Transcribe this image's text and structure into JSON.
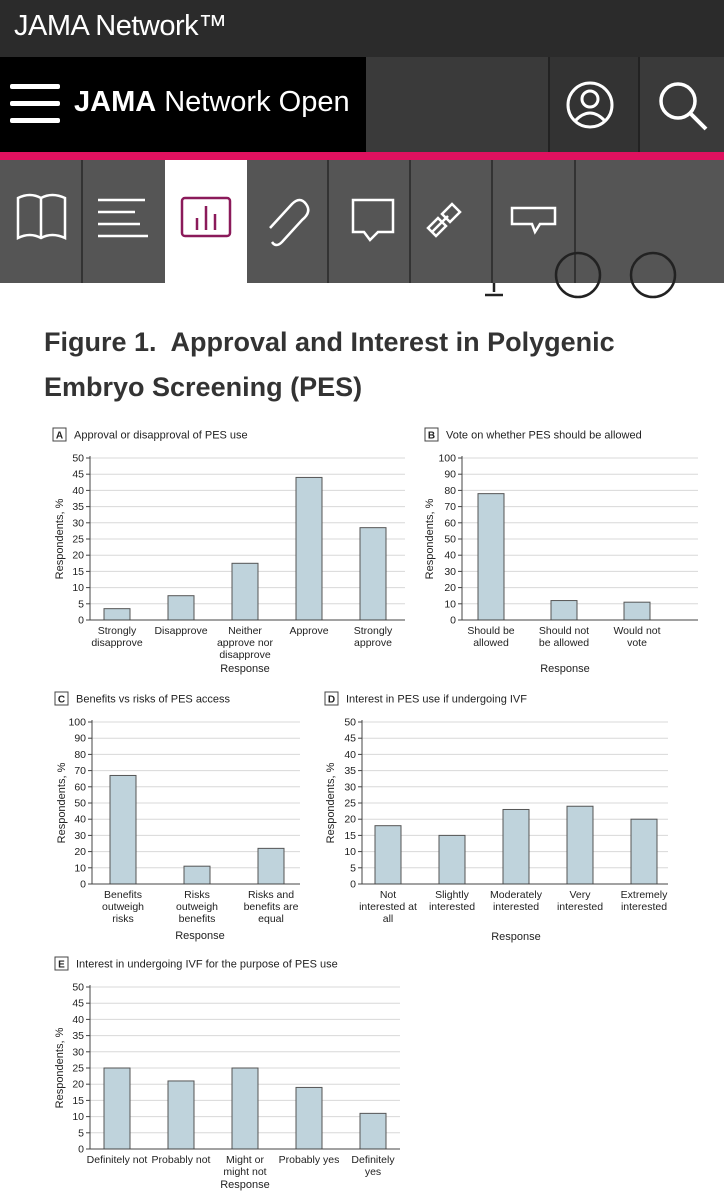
{
  "header": {
    "brand": "JAMA Network™",
    "journal_prefix": "JAMA",
    "journal_name": "Network Open"
  },
  "figure_title": "Figure 1.  Approval and Interest in Polygenic Embryo Screening (PES)",
  "chart_data": [
    {
      "type": "bar",
      "panel": "A",
      "title": "Approval or disapproval of PES use",
      "y_label": "Respondents, %",
      "x_label": "Response",
      "categories": [
        "Strongly disapprove",
        "Disapprove",
        "Neither approve nor disapprove",
        "Approve",
        "Strongly approve"
      ],
      "values": [
        3.5,
        7.5,
        17.5,
        44,
        28.5
      ],
      "color": "#bfd3dc",
      "ylim": [
        0,
        50
      ],
      "yticks": [
        0,
        5,
        10,
        15,
        20,
        25,
        30,
        35,
        40,
        45,
        50
      ],
      "grid": true
    },
    {
      "type": "bar",
      "panel": "B",
      "title": "Vote on whether PES should be allowed",
      "y_label": "Respondents, %",
      "x_label": "Response",
      "categories": [
        "Should be allowed",
        "Should not be allowed",
        "Would not vote"
      ],
      "values": [
        78,
        12,
        11
      ],
      "color": "#bfd3dc",
      "ylim": [
        0,
        100
      ],
      "yticks": [
        0,
        10,
        20,
        30,
        40,
        50,
        60,
        70,
        80,
        90,
        100
      ],
      "grid": true
    },
    {
      "type": "bar",
      "panel": "C",
      "title": "Benefits vs risks of PES access",
      "y_label": "Respondents, %",
      "x_label": "Response",
      "categories": [
        "Benefits outweigh risks",
        "Risks outweigh benefits",
        "Risks and benefits are equal"
      ],
      "values": [
        67,
        11,
        22
      ],
      "color": "#bfd3dc",
      "ylim": [
        0,
        100
      ],
      "yticks": [
        0,
        10,
        20,
        30,
        40,
        50,
        60,
        70,
        80,
        90,
        100
      ],
      "grid": true
    },
    {
      "type": "bar",
      "panel": "D",
      "title": "Interest in PES use if undergoing IVF",
      "y_label": "Respondents, %",
      "x_label": "Response",
      "categories": [
        "Not interested at all",
        "Slightly interested",
        "Moderately interested",
        "Very interested",
        "Extremely interested"
      ],
      "values": [
        18,
        15,
        23,
        24,
        20
      ],
      "color": "#bfd3dc",
      "ylim": [
        0,
        50
      ],
      "yticks": [
        0,
        5,
        10,
        15,
        20,
        25,
        30,
        35,
        40,
        45,
        50
      ],
      "grid": true
    },
    {
      "type": "bar",
      "panel": "E",
      "title": "Interest in undergoing IVF for the purpose of PES use",
      "y_label": "Respondents, %",
      "x_label": "Response",
      "categories": [
        "Definitely not",
        "Probably not",
        "Might or might not",
        "Probably yes",
        "Definitely yes"
      ],
      "values": [
        25,
        21,
        25,
        19,
        11
      ],
      "color": "#bfd3dc",
      "ylim": [
        0,
        50
      ],
      "yticks": [
        0,
        5,
        10,
        15,
        20,
        25,
        30,
        35,
        40,
        45,
        50
      ],
      "grid": true
    }
  ]
}
